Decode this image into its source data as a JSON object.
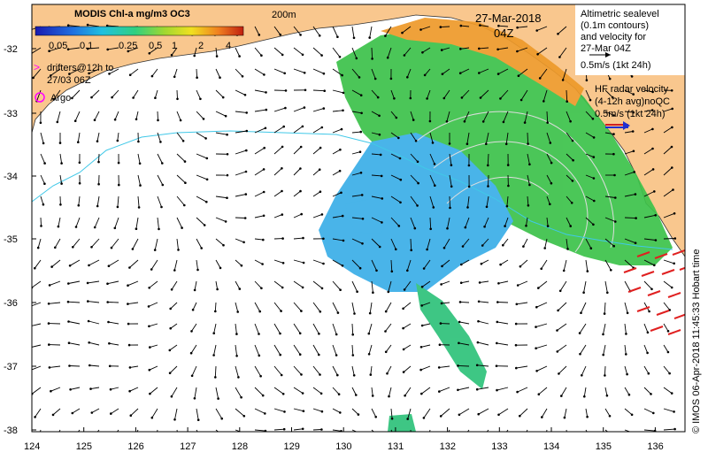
{
  "colorbar": {
    "title": "MODIS Chl-a mg/m3 OC3",
    "ticks": [
      "0.05",
      "0.1",
      "0.25",
      "0.5",
      "1",
      "2",
      "4"
    ]
  },
  "isobath_label": "200m",
  "date": "27-Mar-2018",
  "time": "04Z",
  "altimetry_legend": {
    "lines": [
      "Altimetric sealevel",
      "(0.1m contours)",
      "and velocity for",
      "27-Mar 04Z",
      "0.5m/s (1kt 24h)"
    ]
  },
  "hf_radar_legend": {
    "lines": [
      "HF radar velocity",
      "(4-12h avg)noQC",
      "0.5m/s (1kt 24h)"
    ]
  },
  "drifters_legend": {
    "symbol": ">",
    "lines": [
      "drifters@12h to",
      "27/03 06Z"
    ]
  },
  "argo_legend": {
    "label": "Argo"
  },
  "credit": "© IMOS 06-Apr-2018 11:45:33 Hobart time",
  "axes": {
    "lat_labels": [
      "-32",
      "-33",
      "-34",
      "-35",
      "-36",
      "-37",
      "-38"
    ],
    "lon_labels": [
      "124",
      "125",
      "126",
      "127",
      "128",
      "129",
      "130",
      "131",
      "132",
      "133",
      "134",
      "135",
      "136"
    ]
  },
  "colors": {
    "land": "#f9c78e",
    "ocean": "#ffffff",
    "chl_low": "#3fa9f5",
    "chl_mid": "#2ec27a",
    "chl_high": "#f0a030",
    "hf_radar_arrow": "#e02020",
    "drifter": "#ff00ff",
    "argo": "#ff00ff"
  }
}
